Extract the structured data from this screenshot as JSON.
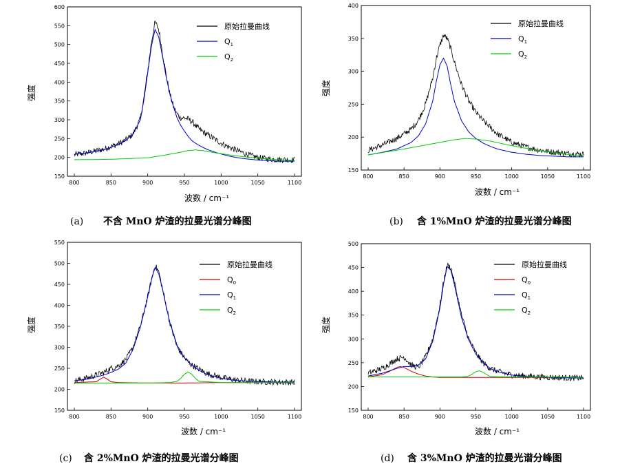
{
  "chart_data": [
    {
      "type": "line",
      "caption_tag": "(a)",
      "caption": "不含 MnO 炉渣的拉曼光谱分峰图",
      "xlabel": "波数 / cm⁻¹",
      "ylabel": "强度",
      "xlim": [
        800,
        1100
      ],
      "ylim": [
        150,
        600
      ],
      "xticks": [
        800,
        850,
        900,
        950,
        1000,
        1050,
        1100
      ],
      "yticks": [
        150,
        200,
        250,
        300,
        350,
        400,
        450,
        500,
        550,
        600
      ],
      "legend": [
        "原始拉曼曲线",
        "Q1",
        "Q2"
      ],
      "series": [
        {
          "name": "原始拉曼曲线",
          "color": "#000000",
          "noisy": true,
          "x": [
            800,
            820,
            840,
            860,
            870,
            880,
            890,
            895,
            900,
            905,
            910,
            915,
            920,
            925,
            930,
            935,
            940,
            945,
            950,
            955,
            960,
            965,
            970,
            980,
            990,
            1000,
            1010,
            1020,
            1030,
            1040,
            1050,
            1060,
            1070,
            1080,
            1090,
            1100
          ],
          "y": [
            207,
            213,
            222,
            236,
            246,
            262,
            302,
            360,
            430,
            505,
            560,
            540,
            480,
            420,
            370,
            335,
            315,
            305,
            305,
            302,
            296,
            285,
            275,
            262,
            250,
            238,
            228,
            220,
            212,
            205,
            200,
            197,
            195,
            194,
            194,
            193
          ]
        },
        {
          "name": "Q1",
          "color": "#0000cc",
          "x": [
            800,
            820,
            840,
            860,
            870,
            880,
            890,
            895,
            900,
            905,
            910,
            915,
            920,
            925,
            930,
            935,
            940,
            945,
            950,
            955,
            960,
            965,
            970,
            980,
            990,
            1000,
            1010,
            1020,
            1030,
            1040,
            1050,
            1060,
            1070,
            1080,
            1090,
            1100
          ],
          "y": [
            208,
            213,
            220,
            234,
            245,
            262,
            300,
            355,
            425,
            495,
            540,
            520,
            470,
            415,
            370,
            335,
            305,
            285,
            270,
            256,
            245,
            238,
            232,
            222,
            215,
            209,
            204,
            200,
            197,
            195,
            193,
            192,
            191,
            190,
            190,
            190
          ]
        },
        {
          "name": "Q2",
          "color": "#00cc00",
          "x": [
            800,
            850,
            900,
            920,
            940,
            955,
            965,
            975,
            990,
            1010,
            1030,
            1050,
            1070,
            1100
          ],
          "y": [
            194,
            195,
            199,
            205,
            212,
            218,
            220,
            218,
            213,
            207,
            202,
            198,
            195,
            192
          ]
        }
      ]
    },
    {
      "type": "line",
      "caption_tag": "(b)",
      "caption": "含 1%MnO 炉渣的拉曼光谱分峰图",
      "xlabel": "波数 / cm⁻¹",
      "ylabel": "强度",
      "xlim": [
        800,
        1100
      ],
      "ylim": [
        150,
        400
      ],
      "xticks": [
        800,
        850,
        900,
        950,
        1000,
        1050,
        1100
      ],
      "yticks": [
        150,
        200,
        250,
        300,
        350,
        400
      ],
      "legend": [
        "原始拉曼曲线",
        "Q1",
        "Q2"
      ],
      "series": [
        {
          "name": "原始拉曼曲线",
          "color": "#000000",
          "noisy": true,
          "x": [
            800,
            820,
            840,
            860,
            870,
            880,
            890,
            895,
            900,
            905,
            910,
            915,
            920,
            930,
            940,
            950,
            960,
            970,
            980,
            1000,
            1020,
            1040,
            1060,
            1080,
            1100
          ],
          "y": [
            180,
            188,
            198,
            212,
            226,
            250,
            290,
            320,
            340,
            355,
            350,
            335,
            315,
            280,
            255,
            238,
            225,
            215,
            205,
            192,
            185,
            180,
            177,
            175,
            174
          ]
        },
        {
          "name": "Q1",
          "color": "#0000cc",
          "x": [
            800,
            820,
            840,
            860,
            870,
            880,
            890,
            895,
            900,
            905,
            910,
            915,
            920,
            930,
            940,
            950,
            960,
            970,
            980,
            1000,
            1020,
            1040,
            1060,
            1080,
            1100
          ],
          "y": [
            173,
            177,
            182,
            192,
            202,
            220,
            255,
            285,
            310,
            320,
            308,
            280,
            255,
            225,
            208,
            198,
            191,
            186,
            182,
            177,
            174,
            172,
            171,
            170,
            170
          ]
        },
        {
          "name": "Q2",
          "color": "#00cc00",
          "x": [
            800,
            850,
            880,
            900,
            920,
            935,
            950,
            970,
            1000,
            1030,
            1060,
            1100
          ],
          "y": [
            173,
            182,
            188,
            192,
            196,
            198,
            197,
            194,
            187,
            181,
            176,
            171
          ]
        }
      ]
    },
    {
      "type": "line",
      "caption_tag": "(c)",
      "caption": "含 2%MnO 炉渣的拉曼光谱分峰图",
      "xlabel": "波数 / cm⁻¹",
      "ylabel": "强度",
      "xlim": [
        800,
        1100
      ],
      "ylim": [
        150,
        550
      ],
      "xticks": [
        800,
        850,
        900,
        950,
        1000,
        1050,
        1100
      ],
      "yticks": [
        150,
        200,
        250,
        300,
        350,
        400,
        450,
        500,
        550
      ],
      "legend": [
        "原始拉曼曲线",
        "Q0",
        "Q1",
        "Q2"
      ],
      "series": [
        {
          "name": "原始拉曼曲线",
          "color": "#000000",
          "noisy": true,
          "x": [
            800,
            820,
            840,
            850,
            860,
            870,
            880,
            890,
            900,
            905,
            910,
            915,
            920,
            925,
            930,
            940,
            950,
            955,
            960,
            970,
            980,
            1000,
            1020,
            1040,
            1060,
            1080,
            1100
          ],
          "y": [
            220,
            228,
            240,
            250,
            256,
            270,
            300,
            350,
            420,
            460,
            495,
            480,
            440,
            400,
            360,
            300,
            275,
            265,
            258,
            248,
            238,
            228,
            222,
            219,
            218,
            217,
            217
          ]
        },
        {
          "name": "Q0",
          "color": "#cc0000",
          "x": [
            800,
            830,
            835,
            840,
            845,
            850,
            860,
            900,
            950,
            1000,
            1050,
            1100
          ],
          "y": [
            216,
            218,
            224,
            229,
            224,
            218,
            216,
            215,
            215,
            216,
            216,
            216
          ]
        },
        {
          "name": "Q1",
          "color": "#0000cc",
          "x": [
            800,
            820,
            840,
            850,
            860,
            870,
            880,
            890,
            900,
            905,
            910,
            915,
            920,
            925,
            930,
            940,
            950,
            960,
            970,
            980,
            1000,
            1020,
            1040,
            1060,
            1080,
            1100
          ],
          "y": [
            220,
            225,
            234,
            240,
            248,
            262,
            295,
            348,
            420,
            460,
            490,
            475,
            440,
            398,
            360,
            305,
            275,
            258,
            245,
            236,
            226,
            221,
            219,
            218,
            217,
            217
          ]
        },
        {
          "name": "Q2",
          "color": "#00cc00",
          "x": [
            800,
            850,
            900,
            930,
            940,
            945,
            950,
            955,
            960,
            965,
            970,
            1000,
            1050,
            1100
          ],
          "y": [
            215,
            215,
            215,
            216,
            219,
            226,
            236,
            241,
            236,
            226,
            219,
            216,
            216,
            216
          ]
        }
      ]
    },
    {
      "type": "line",
      "caption_tag": "(d)",
      "caption": "含 3%MnO 炉渣的拉曼光谱分峰图",
      "xlabel": "波数 / cm⁻¹",
      "ylabel": "强度",
      "xlim": [
        800,
        1100
      ],
      "ylim": [
        150,
        500
      ],
      "xticks": [
        800,
        850,
        900,
        950,
        1000,
        1050,
        1100
      ],
      "yticks": [
        150,
        200,
        250,
        300,
        350,
        400,
        450,
        500
      ],
      "legend": [
        "原始拉曼曲线",
        "Q0",
        "Q1",
        "Q2"
      ],
      "series": [
        {
          "name": "原始拉曼曲线",
          "color": "#000000",
          "noisy": true,
          "x": [
            800,
            820,
            840,
            850,
            860,
            870,
            880,
            890,
            900,
            905,
            910,
            915,
            920,
            925,
            930,
            940,
            950,
            960,
            970,
            980,
            1000,
            1020,
            1040,
            1060,
            1080,
            1100
          ],
          "y": [
            228,
            238,
            258,
            262,
            245,
            240,
            262,
            300,
            370,
            420,
            455,
            450,
            420,
            385,
            350,
            300,
            270,
            250,
            238,
            232,
            224,
            222,
            220,
            219,
            218,
            218
          ]
        },
        {
          "name": "Q0",
          "color": "#cc0000",
          "x": [
            800,
            820,
            830,
            840,
            845,
            850,
            860,
            870,
            880,
            890,
            900,
            950,
            1000,
            1050,
            1100
          ],
          "y": [
            220,
            225,
            232,
            240,
            242,
            240,
            232,
            226,
            222,
            220,
            219,
            219,
            219,
            219,
            219
          ]
        },
        {
          "name": "Q1",
          "color": "#0000cc",
          "x": [
            800,
            820,
            840,
            850,
            860,
            870,
            880,
            890,
            900,
            905,
            910,
            915,
            920,
            925,
            930,
            940,
            950,
            960,
            970,
            980,
            1000,
            1020,
            1040,
            1060,
            1080,
            1100
          ],
          "y": [
            222,
            228,
            238,
            242,
            242,
            245,
            258,
            295,
            365,
            415,
            452,
            445,
            415,
            380,
            345,
            298,
            268,
            250,
            238,
            231,
            224,
            221,
            220,
            219,
            218,
            218
          ]
        },
        {
          "name": "Q2",
          "color": "#00cc00",
          "x": [
            800,
            850,
            900,
            930,
            940,
            945,
            950,
            955,
            960,
            965,
            970,
            1000,
            1050,
            1100
          ],
          "y": [
            220,
            220,
            220,
            220,
            222,
            226,
            231,
            233,
            230,
            225,
            221,
            220,
            220,
            219
          ]
        }
      ]
    }
  ]
}
